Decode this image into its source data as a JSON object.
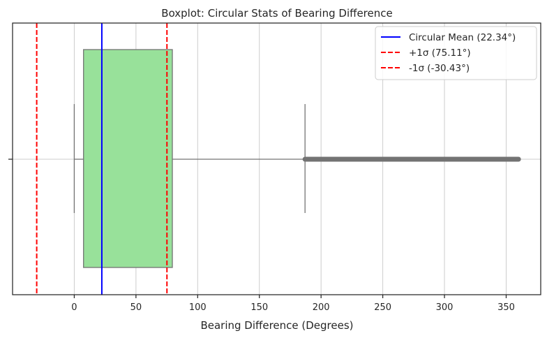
{
  "chart_data": {
    "type": "boxplot",
    "title": "Boxplot: Circular Stats of Bearing Difference",
    "xlabel": "Bearing Difference (Degrees)",
    "ylabel": "",
    "xlim": [
      -50,
      378
    ],
    "xticks": [
      0,
      50,
      100,
      150,
      200,
      250,
      300,
      350
    ],
    "grid": "vertical",
    "legend_position": "top-right",
    "box": {
      "whisker_low": 0,
      "q1": 7.5,
      "median": 22.3,
      "q3": 79.5,
      "whisker_high": 187,
      "outliers_range": [
        187,
        360
      ],
      "fill_color": "#98e19a",
      "edge_color": "#737373"
    },
    "reference_lines": [
      {
        "label": "Circular Mean (22.34°)",
        "value": 22.34,
        "color": "#0000ff",
        "style": "solid"
      },
      {
        "label": "+1σ (75.11°)",
        "value": 75.11,
        "color": "#ff0000",
        "style": "dashed"
      },
      {
        "label": "-1σ (-30.43°)",
        "value": -30.43,
        "color": "#ff0000",
        "style": "dashed"
      }
    ]
  }
}
